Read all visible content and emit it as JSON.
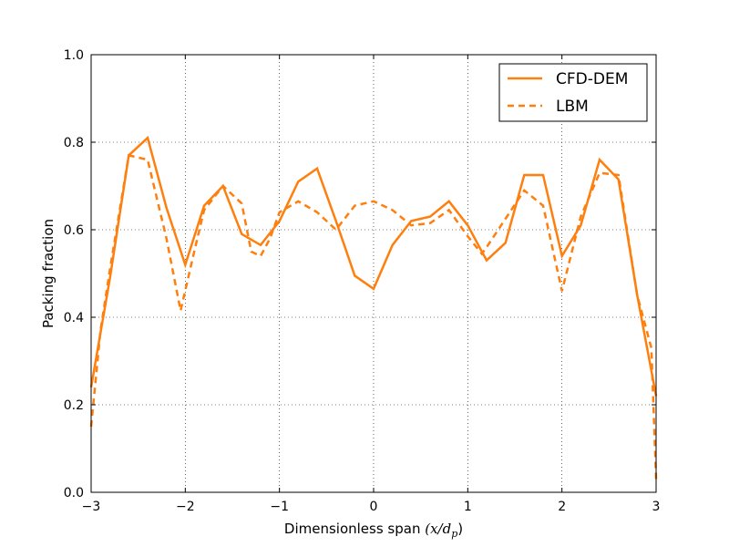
{
  "chart_data": {
    "type": "line",
    "xlabel_prefix": "Dimensionless span",
    "xlabel_math": "(x/d",
    "xlabel_sub": "p",
    "xlabel_close": ")",
    "ylabel": "Packing fraction",
    "xlim": [
      -3,
      3
    ],
    "ylim": [
      0,
      1
    ],
    "xticks": [
      -3,
      -2,
      -1,
      0,
      1,
      2,
      3
    ],
    "xtick_labels": [
      "−3",
      "−2",
      "−1",
      "0",
      "1",
      "2",
      "3"
    ],
    "yticks": [
      0.0,
      0.2,
      0.4,
      0.6,
      0.8,
      1.0
    ],
    "ytick_labels": [
      "0.0",
      "0.2",
      "0.4",
      "0.6",
      "0.8",
      "1.0"
    ],
    "grid": true,
    "legend_position": "top-right",
    "series": [
      {
        "name": "CFD-DEM",
        "color": "#ff7f0e",
        "style": "solid",
        "x": [
          -3.0,
          -2.8,
          -2.6,
          -2.4,
          -2.2,
          -2.0,
          -1.8,
          -1.6,
          -1.4,
          -1.2,
          -1.0,
          -0.8,
          -0.6,
          -0.4,
          -0.2,
          0.0,
          0.2,
          0.4,
          0.6,
          0.8,
          1.0,
          1.2,
          1.4,
          1.6,
          1.8,
          2.0,
          2.2,
          2.4,
          2.6,
          2.8,
          3.0
        ],
        "y": [
          0.24,
          0.49,
          0.77,
          0.81,
          0.65,
          0.52,
          0.655,
          0.7,
          0.59,
          0.565,
          0.62,
          0.71,
          0.74,
          0.62,
          0.495,
          0.465,
          0.565,
          0.62,
          0.63,
          0.665,
          0.61,
          0.53,
          0.57,
          0.725,
          0.725,
          0.54,
          0.61,
          0.76,
          0.715,
          0.45,
          0.22
        ]
      },
      {
        "name": "LBM",
        "color": "#ff7f0e",
        "style": "dashed",
        "x": [
          -3.0,
          -2.9,
          -2.8,
          -2.6,
          -2.4,
          -2.2,
          -2.05,
          -1.9,
          -1.8,
          -1.6,
          -1.4,
          -1.3,
          -1.2,
          -1.1,
          -1.0,
          -0.8,
          -0.6,
          -0.4,
          -0.2,
          0.0,
          0.2,
          0.4,
          0.6,
          0.8,
          1.0,
          1.15,
          1.2,
          1.4,
          1.6,
          1.8,
          2.0,
          2.2,
          2.4,
          2.6,
          2.8,
          2.95,
          3.0
        ],
        "y": [
          0.15,
          0.37,
          0.51,
          0.77,
          0.76,
          0.58,
          0.415,
          0.555,
          0.645,
          0.7,
          0.66,
          0.55,
          0.54,
          0.58,
          0.64,
          0.665,
          0.64,
          0.6,
          0.655,
          0.665,
          0.645,
          0.61,
          0.615,
          0.645,
          0.585,
          0.545,
          0.56,
          0.625,
          0.69,
          0.655,
          0.46,
          0.63,
          0.73,
          0.725,
          0.45,
          0.33,
          0.03
        ]
      }
    ]
  }
}
